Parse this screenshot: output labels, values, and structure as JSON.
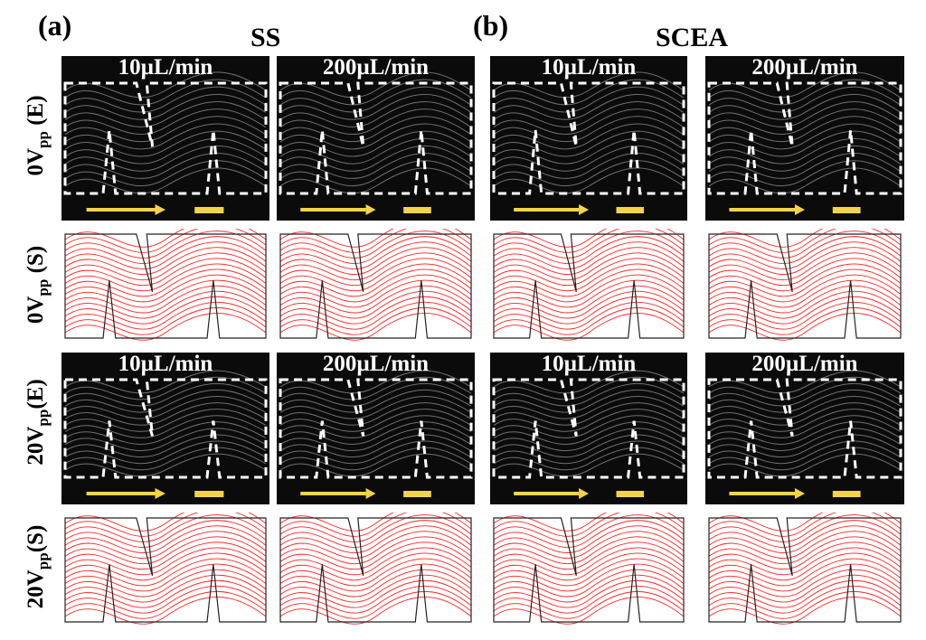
{
  "panels": {
    "a": "(a)",
    "b": "(b)"
  },
  "groups": {
    "a": "SS",
    "b": "SCEA"
  },
  "rows": [
    {
      "main": "0V",
      "sub": "pp",
      "suffix": " (E)",
      "kind": "E"
    },
    {
      "main": "0V",
      "sub": "pp",
      "suffix": " (S)",
      "kind": "S"
    },
    {
      "main": "20V",
      "sub": "pp",
      "suffix": "(E)",
      "kind": "E"
    },
    {
      "main": "20V",
      "sub": "pp",
      "suffix": "(S)",
      "kind": "S"
    }
  ],
  "flow_rates": [
    "10µL/min",
    "200µL/min",
    "10µL/min",
    "200µL/min"
  ],
  "colors": {
    "experiment_bg": "#0b0b0b",
    "streamline": "#ff2020",
    "arrow": "#f3d34a",
    "boundary": "#ffffff"
  }
}
